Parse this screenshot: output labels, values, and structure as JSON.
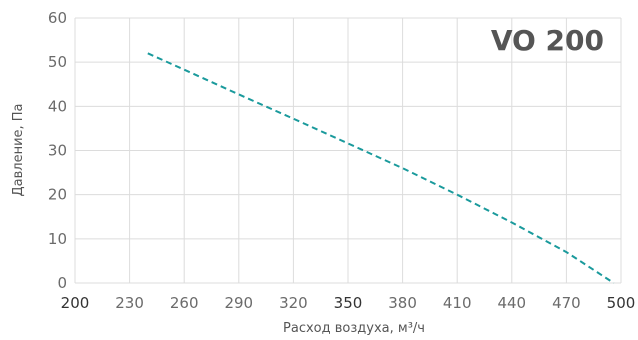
{
  "chart_data": {
    "type": "line",
    "title": "VO 200",
    "xlabel": "Расход воздуха, м³/ч",
    "ylabel": "Давление, Па",
    "xlim": [
      200,
      500
    ],
    "ylim": [
      0,
      60
    ],
    "x_ticks": [
      "200",
      "230",
      "260",
      "290",
      "320",
      "350",
      "380",
      "410",
      "440",
      "470",
      "500"
    ],
    "y_ticks": [
      "0",
      "10",
      "20",
      "30",
      "40",
      "50",
      "60"
    ],
    "grid": true,
    "series": [
      {
        "color": "#1a9a9c",
        "line_style": "dashed",
        "x": [
          240,
          260,
          290,
          320,
          350,
          380,
          410,
          440,
          470,
          496
        ],
        "y": [
          52,
          48.3,
          42.7,
          37.2,
          31.6,
          26,
          20,
          13.7,
          7,
          0
        ]
      }
    ]
  }
}
